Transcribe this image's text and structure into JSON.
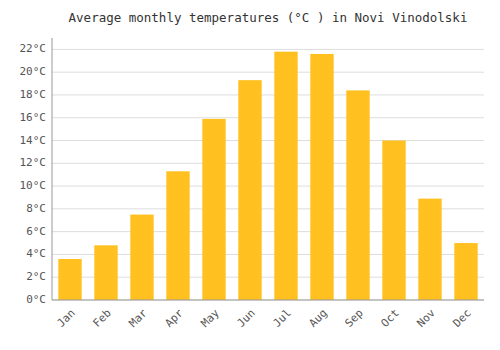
{
  "chart_data": {
    "type": "bar",
    "title": "Average monthly temperatures (°C ) in Novi Vinodolski",
    "categories": [
      "Jan",
      "Feb",
      "Mar",
      "Apr",
      "May",
      "Jun",
      "Jul",
      "Aug",
      "Sep",
      "Oct",
      "Nov",
      "Dec"
    ],
    "values": [
      3.6,
      4.8,
      7.5,
      11.3,
      15.9,
      19.3,
      21.8,
      21.6,
      18.4,
      14.0,
      8.9,
      5.0
    ],
    "color": "#FFC020",
    "ylim": [
      0,
      23
    ],
    "yticks": [
      {
        "value": 0,
        "label": "0°C"
      },
      {
        "value": 2,
        "label": "2°C"
      },
      {
        "value": 4,
        "label": "4°C"
      },
      {
        "value": 6,
        "label": "6°C"
      },
      {
        "value": 8,
        "label": "8°C"
      },
      {
        "value": 10,
        "label": "10°C"
      },
      {
        "value": 12,
        "label": "12°C"
      },
      {
        "value": 14,
        "label": "14°C"
      },
      {
        "value": 16,
        "label": "16°C"
      },
      {
        "value": 18,
        "label": "18°C"
      },
      {
        "value": 20,
        "label": "20°C"
      },
      {
        "value": 22,
        "label": "22°C"
      }
    ],
    "grid": true
  }
}
